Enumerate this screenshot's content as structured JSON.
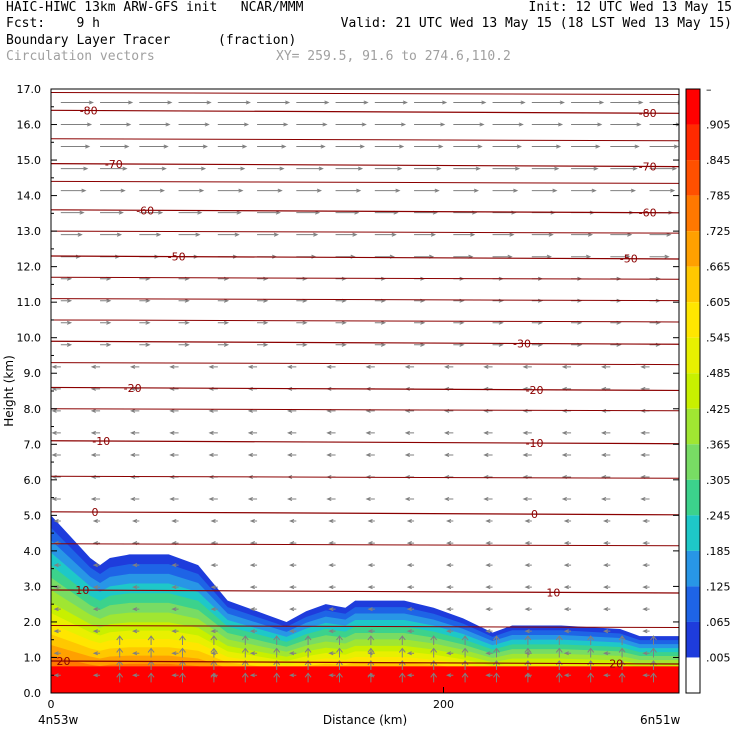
{
  "header": {
    "line1_left": "HAIC-HIWC 13km ARW-GFS init   NCAR/MMM",
    "line1_right": "Init: 12 UTC Wed 13 May 15",
    "line2_left": "Fcst:    9 h",
    "line2_right": "Valid: 21 UTC Wed 13 May 15 (18 LST Wed 13 May 15)",
    "line3_left": "Boundary Layer Tracer",
    "line3_units": "(fraction)",
    "line4_left": "Circulation vectors",
    "line4_right": "XY= 259.5, 91.6 to 274.6,110.2"
  },
  "chart_data": {
    "type": "cross-section",
    "ylabel": "Height (km)",
    "xlabel": "Distance (km)",
    "ylim": [
      0,
      17
    ],
    "xlim": [
      0,
      320
    ],
    "y_ticks": [
      "0.0",
      "1.0",
      "2.0",
      "3.0",
      "4.0",
      "5.0",
      "6.0",
      "7.0",
      "8.0",
      "9.0",
      "10.0",
      "11.0",
      "12.0",
      "13.0",
      "14.0",
      "15.0",
      "16.0",
      "17.0"
    ],
    "x_ticks": [
      {
        "x": 0,
        "label": "0"
      },
      {
        "x": 200,
        "label": "200"
      }
    ],
    "x_end_labels": {
      "left": "4n53w",
      "right": "6n51w"
    },
    "colorbar": {
      "labels": [
        "–",
        ".905",
        ".845",
        ".785",
        ".725",
        ".665",
        ".605",
        ".545",
        ".485",
        ".425",
        ".365",
        ".305",
        ".245",
        ".185",
        ".125",
        ".065",
        ".005"
      ],
      "colors": [
        "#ff0000",
        "#ff2a00",
        "#ff5000",
        "#ff7800",
        "#ffa000",
        "#ffc800",
        "#ffe600",
        "#e8f000",
        "#c8f000",
        "#a0e632",
        "#78dc64",
        "#3cd28c",
        "#1ec8c8",
        "#2896e6",
        "#1e64e6",
        "#1e3cdc",
        "#ffffff"
      ]
    },
    "tracer_top_profile_km": [
      [
        0,
        5.0
      ],
      [
        10,
        4.4
      ],
      [
        20,
        3.8
      ],
      [
        25,
        3.6
      ],
      [
        30,
        3.8
      ],
      [
        40,
        3.9
      ],
      [
        60,
        3.9
      ],
      [
        75,
        3.6
      ],
      [
        90,
        2.6
      ],
      [
        110,
        2.2
      ],
      [
        120,
        2.0
      ],
      [
        130,
        2.3
      ],
      [
        140,
        2.5
      ],
      [
        150,
        2.4
      ],
      [
        155,
        2.6
      ],
      [
        165,
        2.6
      ],
      [
        180,
        2.6
      ],
      [
        195,
        2.4
      ],
      [
        210,
        2.1
      ],
      [
        225,
        1.7
      ],
      [
        235,
        1.9
      ],
      [
        260,
        1.9
      ],
      [
        290,
        1.8
      ],
      [
        300,
        1.6
      ],
      [
        320,
        1.6
      ]
    ],
    "temperature_contours": [
      {
        "label": "-80",
        "label_positions": [
          0.06,
          0.95
        ],
        "y_km": 16.4
      },
      {
        "label": "-70",
        "label_positions": [
          0.1,
          0.95
        ],
        "y_km": 14.9
      },
      {
        "label": "-60",
        "label_positions": [
          0.15,
          0.95
        ],
        "y_km": 13.6
      },
      {
        "label": "-50",
        "label_positions": [
          0.2,
          0.92
        ],
        "y_km": 12.3
      },
      {
        "label": "-30",
        "label_positions": [
          0.75
        ],
        "y_km": 9.9
      },
      {
        "label": "-20",
        "label_positions": [
          0.13,
          0.77
        ],
        "y_km": 8.6
      },
      {
        "label": "-10",
        "label_positions": [
          0.08,
          0.77
        ],
        "y_km": 7.1
      },
      {
        "label": "0",
        "label_positions": [
          0.07,
          0.77
        ],
        "y_km": 5.1
      },
      {
        "label": "10",
        "label_positions": [
          0.05,
          0.8
        ],
        "y_km": 2.9
      },
      {
        "label": "20",
        "label_positions": [
          0.02,
          0.9
        ],
        "y_km": 0.9
      }
    ]
  }
}
